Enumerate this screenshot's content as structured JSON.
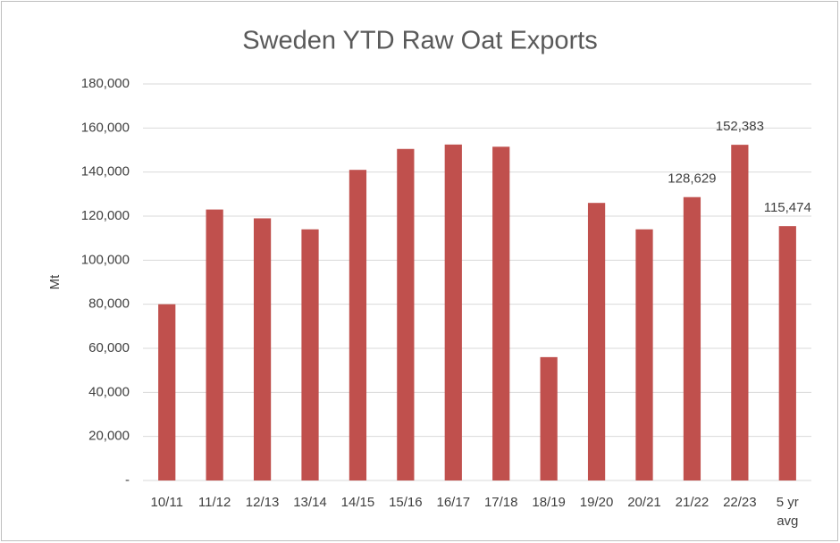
{
  "chart_data": {
    "type": "bar",
    "title": "Sweden YTD Raw Oat Exports",
    "y_label": "Mt",
    "categories": [
      "10/11",
      "11/12",
      "12/13",
      "13/14",
      "14/15",
      "15/16",
      "16/17",
      "17/18",
      "18/19",
      "19/20",
      "20/21",
      "21/22",
      "22/23",
      "5 yr avg"
    ],
    "values": [
      80000,
      123000,
      119000,
      114000,
      141000,
      150500,
      152500,
      151500,
      56000,
      126000,
      114000,
      128629,
      152383,
      115474
    ],
    "value_labels": [
      null,
      null,
      null,
      null,
      null,
      null,
      null,
      null,
      null,
      null,
      null,
      "128,629",
      "152,383",
      "115,474"
    ],
    "color": "#c0504d",
    "ylim": [
      0,
      180000
    ],
    "yticks": [
      {
        "value": 0,
        "label": "-"
      },
      {
        "value": 20000,
        "label": "20,000"
      },
      {
        "value": 40000,
        "label": "40,000"
      },
      {
        "value": 60000,
        "label": "60,000"
      },
      {
        "value": 80000,
        "label": "80,000"
      },
      {
        "value": 100000,
        "label": "100,000"
      },
      {
        "value": 120000,
        "label": "120,000"
      },
      {
        "value": 140000,
        "label": "140,000"
      },
      {
        "value": 160000,
        "label": "160,000"
      },
      {
        "value": 180000,
        "label": "180,000"
      }
    ],
    "grid": true
  }
}
